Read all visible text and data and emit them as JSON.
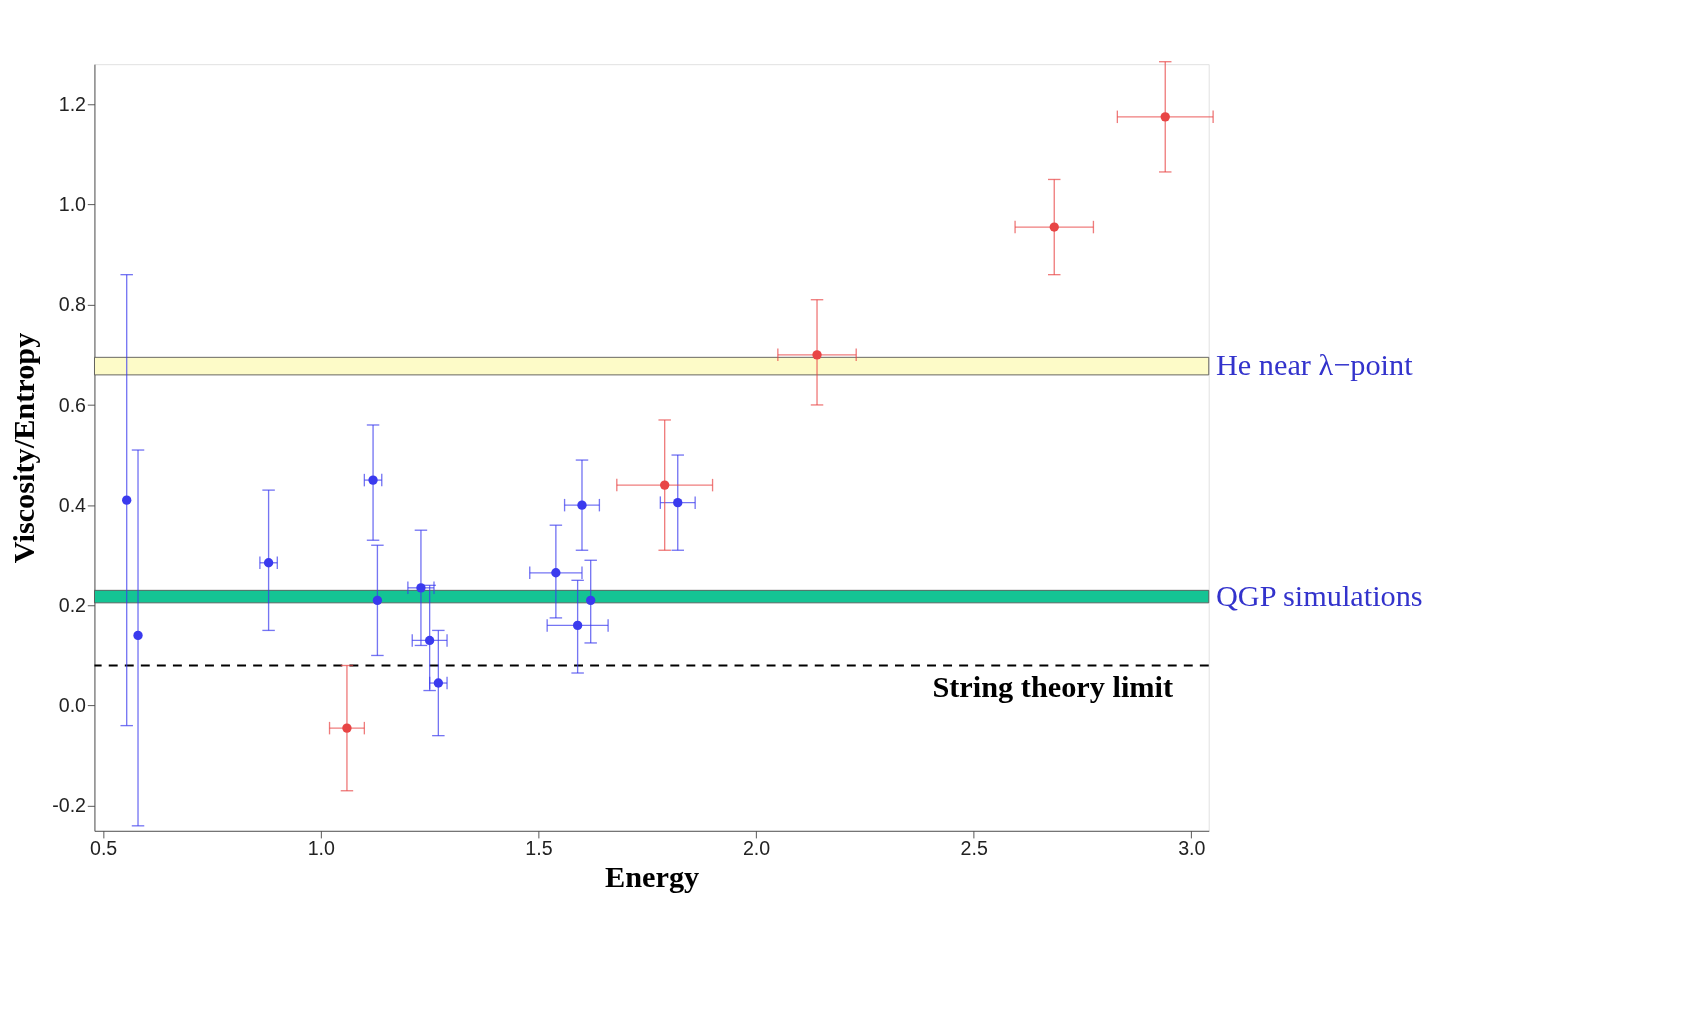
{
  "chart_data": {
    "type": "scatter",
    "xlabel": "Energy",
    "ylabel": "Viscosity/Entropy",
    "xlim": [
      0.48,
      3.04
    ],
    "ylim": [
      -0.25,
      1.28
    ],
    "xticks": [
      0.5,
      {
        "value": 1,
        "label": "1.0"
      },
      1.5,
      {
        "value": 2,
        "label": "2.0"
      },
      2.5,
      {
        "value": 3,
        "label": "3.0"
      }
    ],
    "yticks": [
      -0.2,
      {
        "value": 0,
        "label": "0.0"
      },
      0.2,
      0.4,
      0.6,
      0.8,
      {
        "value": 1,
        "label": "1.0"
      },
      1.2
    ],
    "grid": false,
    "marker": "circle",
    "series": [
      {
        "color": "#3a3aee",
        "x": [
          0.554,
          0.58,
          0.88,
          1.12,
          1.13,
          1.23,
          1.25,
          1.27,
          1.54,
          1.59,
          1.6,
          1.62,
          1.82
        ],
        "values": [
          0.41,
          0.14,
          0.285,
          0.45,
          0.21,
          0.235,
          0.13,
          0.045,
          0.265,
          0.16,
          0.4,
          0.21,
          0.405
        ],
        "errors": [
          [
            -0.04,
            0.86
          ],
          [
            -0.24,
            0.51
          ],
          [
            0.15,
            0.43
          ],
          [
            0.33,
            0.56
          ],
          [
            0.1,
            0.32
          ],
          [
            0.12,
            0.35
          ],
          [
            0.03,
            0.24
          ],
          [
            -0.06,
            0.15
          ],
          [
            0.175,
            0.36
          ],
          [
            0.065,
            0.25
          ],
          [
            0.31,
            0.49
          ],
          [
            0.125,
            0.29
          ],
          [
            0.31,
            0.5
          ]
        ],
        "xerrors": [
          null,
          null,
          0.02,
          0.02,
          null,
          0.03,
          0.04,
          0.02,
          0.06,
          0.07,
          0.04,
          null,
          0.04
        ]
      },
      {
        "color": "#e84545",
        "x": [
          1.06,
          1.79,
          2.14,
          2.685,
          2.94
        ],
        "values": [
          -0.045,
          0.44,
          0.7,
          0.955,
          1.175
        ],
        "errors": [
          [
            -0.17,
            0.08
          ],
          [
            0.31,
            0.57
          ],
          [
            0.6,
            0.81
          ],
          [
            0.86,
            1.05
          ],
          [
            1.065,
            1.285
          ]
        ],
        "xerrors": [
          0.04,
          0.11,
          0.09,
          0.09,
          0.11
        ]
      }
    ],
    "bands": [
      {
        "axis": "y",
        "from": 0.66,
        "to": 0.695,
        "label": "He near λ−point",
        "color": "#fdfbc8"
      },
      {
        "axis": "y",
        "from": 0.205,
        "to": 0.23,
        "label": "QGP simulations",
        "color": "#14c494"
      }
    ],
    "ref_lines": [
      {
        "axis": "y",
        "value": 0.08,
        "label": "String theory limit",
        "line_style": "dashed",
        "color": "#000000"
      }
    ]
  }
}
